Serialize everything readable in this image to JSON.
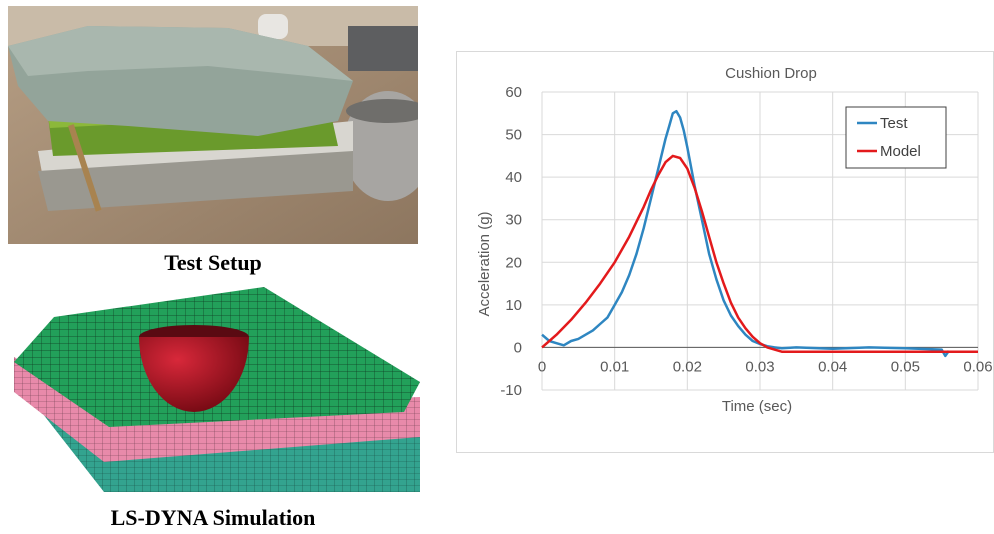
{
  "panels": {
    "test_caption": "Test Setup",
    "sim_caption": "LS-DYNA Simulation"
  },
  "colors": {
    "test": "#2e86c1",
    "model": "#e31a1c",
    "sim_top": "#22a05a",
    "sim_mid": "#e88aaa",
    "sim_bottom": "#33a38f",
    "sphere": "#b3101f"
  },
  "chart_data": {
    "type": "line",
    "title": "Cushion Drop",
    "xlabel": "Time (sec)",
    "ylabel": "Acceleration (g)",
    "xlim": [
      0,
      0.06
    ],
    "ylim": [
      -10,
      60
    ],
    "xticks": [
      "0",
      "0.01",
      "0.02",
      "0.03",
      "0.04",
      "0.05",
      "0.06"
    ],
    "yticks": [
      "-10",
      "0",
      "10",
      "20",
      "30",
      "40",
      "50",
      "60"
    ],
    "grid": true,
    "legend": "top-right",
    "series": [
      {
        "name": "Test",
        "color": "#2e86c1",
        "x": [
          0,
          0.001,
          0.002,
          0.003,
          0.004,
          0.005,
          0.006,
          0.007,
          0.008,
          0.009,
          0.01,
          0.011,
          0.012,
          0.013,
          0.014,
          0.015,
          0.016,
          0.017,
          0.0175,
          0.018,
          0.0185,
          0.019,
          0.0195,
          0.02,
          0.021,
          0.022,
          0.023,
          0.024,
          0.025,
          0.026,
          0.027,
          0.028,
          0.029,
          0.03,
          0.031,
          0.032,
          0.033,
          0.035,
          0.04,
          0.045,
          0.05,
          0.055,
          0.0555,
          0.056
        ],
        "y": [
          3,
          1.5,
          1,
          0.5,
          1.5,
          2,
          3,
          4,
          5.5,
          7,
          10,
          13,
          17,
          22,
          28,
          35,
          42,
          49,
          52,
          55,
          55.5,
          54,
          51,
          47,
          38,
          30,
          22,
          16,
          11,
          7.5,
          5,
          3,
          1.5,
          0.8,
          0.3,
          0,
          -0.2,
          0,
          -0.3,
          0,
          -0.2,
          -0.5,
          -2,
          -0.8
        ]
      },
      {
        "name": "Model",
        "color": "#e31a1c",
        "x": [
          0,
          0.002,
          0.004,
          0.006,
          0.008,
          0.01,
          0.012,
          0.014,
          0.015,
          0.016,
          0.017,
          0.018,
          0.019,
          0.02,
          0.021,
          0.022,
          0.023,
          0.024,
          0.025,
          0.026,
          0.027,
          0.028,
          0.029,
          0.03,
          0.031,
          0.032,
          0.033,
          0.035,
          0.04,
          0.045,
          0.05,
          0.055,
          0.06
        ],
        "y": [
          0,
          3,
          6.5,
          10.5,
          15,
          20,
          26,
          33,
          37,
          40.5,
          43.5,
          45,
          44.5,
          42,
          37.5,
          32,
          26,
          20,
          15,
          10.5,
          7,
          4.5,
          2.5,
          1,
          0,
          -0.5,
          -1,
          -1,
          -1,
          -1,
          -1,
          -1,
          -1
        ]
      }
    ]
  }
}
